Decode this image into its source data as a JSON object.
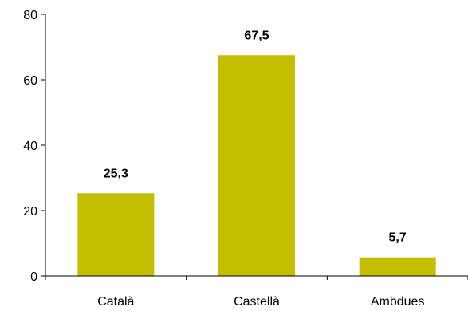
{
  "chart_data": {
    "type": "bar",
    "categories": [
      "Català",
      "Castellà",
      "Ambdues"
    ],
    "values": [
      25.3,
      67.5,
      5.7
    ],
    "data_labels": [
      "25,3",
      "67,5",
      "5,7"
    ],
    "y_ticks": [
      0,
      20,
      40,
      60,
      80
    ],
    "y_tick_labels": [
      "0",
      "20",
      "40",
      "60",
      "80"
    ],
    "ylim": [
      0,
      80
    ],
    "title": "",
    "xlabel": "",
    "ylabel": "",
    "grid": false,
    "legend": "none",
    "colors": {
      "bar": "#C4BE00",
      "axis": "#000000",
      "text": "#000000",
      "background": "#FFFFFF"
    }
  }
}
